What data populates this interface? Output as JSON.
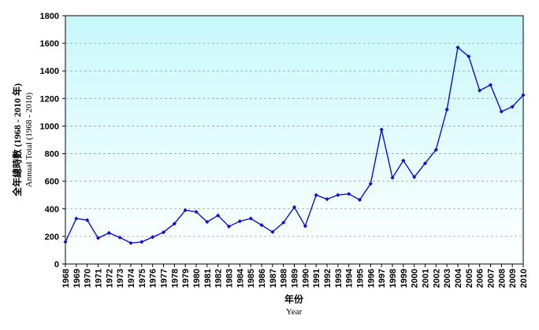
{
  "chart_data": {
    "type": "line",
    "title": "",
    "xlabel": "年份",
    "xlabel_en": "Year",
    "ylabel": "全年總時數 (1968 - 2010 年)",
    "ylabel_en": "Annual Total (1968 - 2010)",
    "ylim": [
      0,
      1800
    ],
    "yticks": [
      0,
      200,
      400,
      600,
      800,
      1000,
      1200,
      1400,
      1600,
      1800
    ],
    "grid": true,
    "legend": "none",
    "colors": {
      "line": "#1010c8",
      "plot_bg_top": "#c8f8fb",
      "plot_bg_bottom": "#ffffff",
      "grid": "#9aa0a6"
    },
    "x": [
      "1968",
      "1969",
      "1970",
      "1971",
      "1972",
      "1973",
      "1974",
      "1975",
      "1976",
      "1977",
      "1978",
      "1979",
      "1980",
      "1981",
      "1982",
      "1983",
      "1984",
      "1985",
      "1986",
      "1987",
      "1988",
      "1989",
      "1990",
      "1991",
      "1992",
      "1993",
      "1994",
      "1995",
      "1996",
      "1997",
      "1998",
      "1999",
      "2000",
      "2001",
      "2002",
      "2003",
      "2004",
      "2005",
      "2006",
      "2007",
      "2008",
      "2009",
      "2010"
    ],
    "series": [
      {
        "values": [
          160,
          330,
          318,
          188,
          225,
          192,
          152,
          160,
          195,
          230,
          292,
          390,
          378,
          305,
          352,
          272,
          310,
          330,
          282,
          232,
          300,
          412,
          275,
          500,
          470,
          500,
          508,
          465,
          582,
          975,
          625,
          750,
          630,
          730,
          828,
          1120,
          1570,
          1505,
          1258,
          1298,
          1105,
          1140,
          1225
        ]
      }
    ]
  }
}
